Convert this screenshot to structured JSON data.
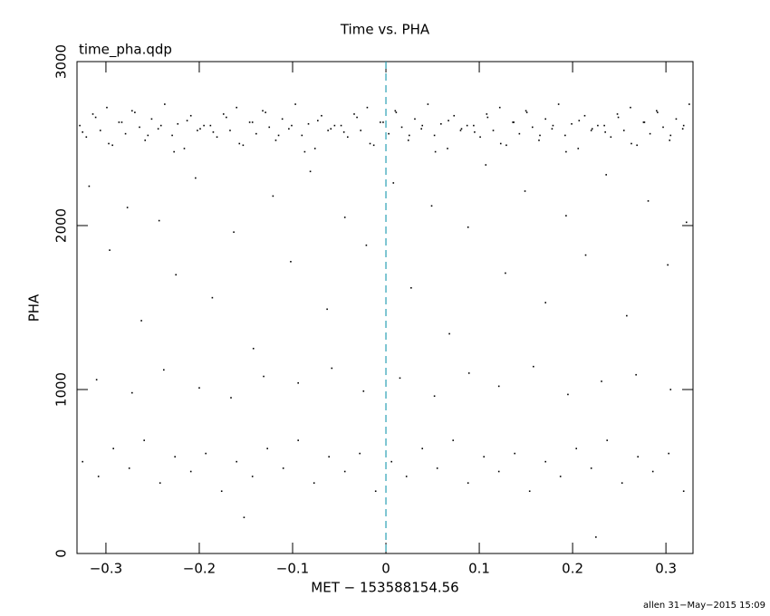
{
  "chart_data": {
    "type": "scatter",
    "title": "Time vs. PHA",
    "plot_label": "time_pha.qdp",
    "x_label": "MET − 153588154.56",
    "y_label": "PHA",
    "footer": "allen 31−May−2015 15:09",
    "xlim": [
      -0.331,
      0.329
    ],
    "ylim": [
      0,
      3000
    ],
    "xticks": [
      {
        "value": -0.3,
        "label": "−0.3"
      },
      {
        "value": -0.2,
        "label": "−0.2"
      },
      {
        "value": -0.1,
        "label": "−0.1"
      },
      0,
      0.1,
      0.2,
      0.3
    ],
    "yticks": [
      0,
      1000,
      2000,
      3000
    ],
    "reference_line_x": 0,
    "reference_line_color": "#2aa0b4",
    "color": "#000000",
    "x": [
      -0.328,
      -0.321,
      -0.314,
      -0.306,
      -0.299,
      -0.293,
      -0.286,
      -0.279,
      -0.272,
      -0.264,
      -0.258,
      -0.251,
      -0.244,
      -0.237,
      -0.229,
      -0.223,
      -0.216,
      -0.209,
      -0.202,
      -0.195,
      -0.188,
      -0.181,
      -0.174,
      -0.167,
      -0.16,
      -0.153,
      -0.146,
      -0.139,
      -0.132,
      -0.125,
      -0.118,
      -0.111,
      -0.104,
      -0.097,
      -0.09,
      -0.083,
      -0.076,
      -0.069,
      -0.062,
      -0.055,
      -0.048,
      -0.041,
      -0.034,
      -0.027,
      -0.02,
      -0.013,
      -0.006,
      0.003,
      0.01,
      0.017,
      0.024,
      0.031,
      0.038,
      0.045,
      0.052,
      0.059,
      0.066,
      0.073,
      0.08,
      0.087,
      0.094,
      0.101,
      0.108,
      0.115,
      0.122,
      0.129,
      0.136,
      0.143,
      0.15,
      0.157,
      0.164,
      0.171,
      0.178,
      0.185,
      0.192,
      0.199,
      0.206,
      0.213,
      0.22,
      0.227,
      0.234,
      0.241,
      0.248,
      0.255,
      0.262,
      0.269,
      0.276,
      0.283,
      0.29,
      0.297,
      0.304,
      0.311,
      0.318,
      0.325,
      -0.325,
      -0.311,
      -0.297,
      -0.283,
      -0.269,
      -0.255,
      -0.241,
      -0.227,
      -0.213,
      -0.199,
      -0.185,
      -0.171,
      -0.157,
      -0.143,
      -0.129,
      -0.115,
      -0.101,
      -0.087,
      -0.073,
      -0.059,
      -0.045,
      -0.031,
      -0.017,
      -0.003,
      0.011,
      0.025,
      0.039,
      0.053,
      0.067,
      0.081,
      0.095,
      0.109,
      0.123,
      0.137,
      0.151,
      0.165,
      0.179,
      0.193,
      0.207,
      0.221,
      0.235,
      0.249,
      0.263,
      0.277,
      0.291,
      0.305,
      0.319,
      -0.318,
      -0.296,
      -0.277,
      -0.262,
      -0.243,
      -0.225,
      -0.204,
      -0.186,
      -0.163,
      -0.142,
      -0.121,
      -0.102,
      -0.081,
      -0.063,
      -0.044,
      -0.021,
      0.008,
      0.027,
      0.049,
      0.068,
      0.088,
      0.107,
      0.128,
      0.149,
      0.171,
      0.193,
      0.214,
      0.236,
      0.258,
      0.281,
      0.302,
      0.322,
      -0.31,
      -0.272,
      -0.238,
      -0.2,
      -0.166,
      -0.131,
      -0.094,
      -0.058,
      -0.024,
      0.015,
      0.052,
      0.089,
      0.121,
      0.158,
      0.195,
      0.231,
      0.268,
      0.305,
      -0.325,
      -0.308,
      -0.292,
      -0.275,
      -0.259,
      -0.242,
      -0.226,
      -0.209,
      -0.193,
      -0.176,
      -0.16,
      -0.143,
      -0.127,
      -0.11,
      -0.094,
      -0.077,
      -0.061,
      -0.044,
      -0.028,
      -0.011,
      0.006,
      0.022,
      0.039,
      0.055,
      0.072,
      0.088,
      0.105,
      0.121,
      0.138,
      0.154,
      0.171,
      0.187,
      0.204,
      0.22,
      0.237,
      0.253,
      0.27,
      0.286,
      0.303,
      0.319,
      0.225,
      -0.152
    ],
    "y": [
      2610,
      2540,
      2680,
      2580,
      2720,
      2490,
      2630,
      2560,
      2700,
      2600,
      2520,
      2650,
      2590,
      2740,
      2550,
      2620,
      2470,
      2670,
      2580,
      2610,
      2610,
      2540,
      2680,
      2580,
      2720,
      2490,
      2630,
      2560,
      2700,
      2600,
      2520,
      2650,
      2590,
      2740,
      2550,
      2620,
      2470,
      2670,
      2580,
      2610,
      2610,
      2540,
      2680,
      2580,
      2720,
      2490,
      2630,
      2560,
      2700,
      2600,
      2520,
      2650,
      2590,
      2740,
      2550,
      2620,
      2470,
      2670,
      2580,
      2610,
      2610,
      2540,
      2680,
      2580,
      2720,
      2490,
      2630,
      2560,
      2700,
      2600,
      2520,
      2650,
      2590,
      2740,
      2550,
      2620,
      2470,
      2670,
      2580,
      2610,
      2610,
      2540,
      2680,
      2580,
      2720,
      2490,
      2630,
      2560,
      2700,
      2600,
      2520,
      2650,
      2590,
      2740,
      2570,
      2660,
      2500,
      2630,
      2690,
      2550,
      2610,
      2450,
      2640,
      2590,
      2570,
      2660,
      2500,
      2630,
      2690,
      2550,
      2610,
      2450,
      2640,
      2590,
      2570,
      2660,
      2500,
      2630,
      2690,
      2550,
      2610,
      2450,
      2640,
      2590,
      2570,
      2660,
      2500,
      2630,
      2690,
      2550,
      2610,
      2450,
      2640,
      2590,
      2570,
      2660,
      2500,
      2630,
      2690,
      2550,
      2610,
      2240,
      1850,
      2110,
      1420,
      2030,
      1700,
      2290,
      1560,
      1960,
      1250,
      2180,
      1780,
      2330,
      1490,
      2050,
      1880,
      2260,
      1620,
      2120,
      1340,
      1990,
      2370,
      1710,
      2210,
      1530,
      2060,
      1820,
      2310,
      1450,
      2150,
      1760,
      2020,
      1060,
      980,
      1120,
      1010,
      950,
      1080,
      1040,
      1130,
      990,
      1070,
      960,
      1100,
      1020,
      1140,
      970,
      1050,
      1090,
      1000,
      560,
      470,
      640,
      520,
      690,
      430,
      590,
      500,
      610,
      380,
      560,
      470,
      640,
      520,
      690,
      430,
      590,
      500,
      610,
      380,
      560,
      470,
      640,
      520,
      690,
      430,
      590,
      500,
      610,
      380,
      560,
      470,
      640,
      520,
      690,
      430,
      590,
      500,
      610,
      380,
      100,
      220
    ]
  }
}
